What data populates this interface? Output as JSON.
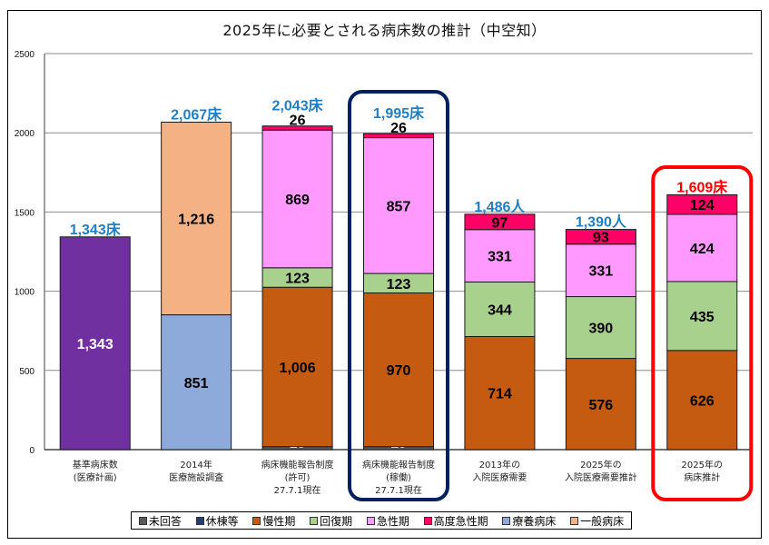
{
  "chart_data": {
    "type": "bar",
    "stacked": true,
    "title": "2025年に必要とされる病床数の推計（中空知）",
    "xlabel": "",
    "ylabel": "",
    "ylim": [
      0,
      2500
    ],
    "yticks": [
      0,
      500,
      1000,
      1500,
      2000,
      2500
    ],
    "grid": true,
    "legend_position": "bottom",
    "categories": [
      [
        "基準病床数",
        "(医療計画)"
      ],
      [
        "2014年",
        "医療施設調査"
      ],
      [
        "病床機能報告制度",
        "(許可)",
        "27.7.1現在"
      ],
      [
        "病床機能報告制度",
        "(稼働)",
        "27.7.1現在"
      ],
      [
        "2013年の",
        "入院医療需要"
      ],
      [
        "2025年の",
        "入院医療需要推計"
      ],
      [
        "2025年の",
        "病床推計"
      ]
    ],
    "series": [
      {
        "name": "未回答",
        "color": "#595959",
        "values": [
          0,
          0,
          19,
          19,
          0,
          0,
          0
        ],
        "label_color": "#ffffff"
      },
      {
        "name": "休棟等",
        "color": "#1f3f7a",
        "values": [
          0,
          0,
          0,
          0,
          0,
          0,
          0
        ],
        "label_color": "#ffffff"
      },
      {
        "name": "慢性期",
        "color": "#c55a11",
        "values": [
          0,
          0,
          1006,
          970,
          714,
          576,
          626
        ],
        "label_color": "#000000"
      },
      {
        "name": "回復期",
        "color": "#a9d18e",
        "values": [
          0,
          0,
          123,
          123,
          344,
          390,
          435
        ],
        "label_color": "#000000"
      },
      {
        "name": "急性期",
        "color": "#ff99ff",
        "values": [
          0,
          0,
          869,
          857,
          331,
          331,
          424
        ],
        "label_color": "#000000"
      },
      {
        "name": "高度急性期",
        "color": "#ff0066",
        "values": [
          0,
          0,
          26,
          26,
          97,
          93,
          124
        ],
        "label_color": "#000000"
      },
      {
        "name": "療養病床",
        "color": "#8eaadb",
        "values": [
          0,
          851,
          0,
          0,
          0,
          0,
          0
        ],
        "label_color": "#000000"
      },
      {
        "name": "一般病床",
        "color": "#f4b183",
        "values": [
          0,
          1216,
          0,
          0,
          0,
          0,
          0
        ],
        "label_color": "#000000"
      },
      {
        "name": "基準病床数",
        "color": "#7030a0",
        "values": [
          1343,
          0,
          0,
          0,
          0,
          0,
          0
        ],
        "label_color": "#ffffff",
        "in_legend": false
      }
    ],
    "segment_labels_shown": {
      "未回答": [
        "",
        "",
        "19",
        "19",
        "",
        "",
        ""
      ]
    },
    "totals": [
      {
        "label": "1,343床",
        "color": "#1f7fc4"
      },
      {
        "label": "2,067床",
        "color": "#1f7fc4"
      },
      {
        "label": "2,043床",
        "color": "#1f7fc4"
      },
      {
        "label": "1,995床",
        "color": "#1f7fc4"
      },
      {
        "label": "1,486人",
        "color": "#1f7fc4"
      },
      {
        "label": "1,390人",
        "color": "#1f7fc4"
      },
      {
        "label": "1,609床",
        "color": "#ff0000"
      }
    ],
    "highlights": [
      {
        "category_index": 3,
        "color": "#002060"
      },
      {
        "category_index": 6,
        "color": "#ff0000"
      }
    ]
  },
  "legend": [
    {
      "label": "未回答",
      "color": "#595959"
    },
    {
      "label": "休棟等",
      "color": "#1f3f7a"
    },
    {
      "label": "慢性期",
      "color": "#c55a11"
    },
    {
      "label": "回復期",
      "color": "#a9d18e"
    },
    {
      "label": "急性期",
      "color": "#ff99ff"
    },
    {
      "label": "高度急性期",
      "color": "#ff0066"
    },
    {
      "label": "療養病床",
      "color": "#8eaadb"
    },
    {
      "label": "一般病床",
      "color": "#f4b183"
    }
  ]
}
